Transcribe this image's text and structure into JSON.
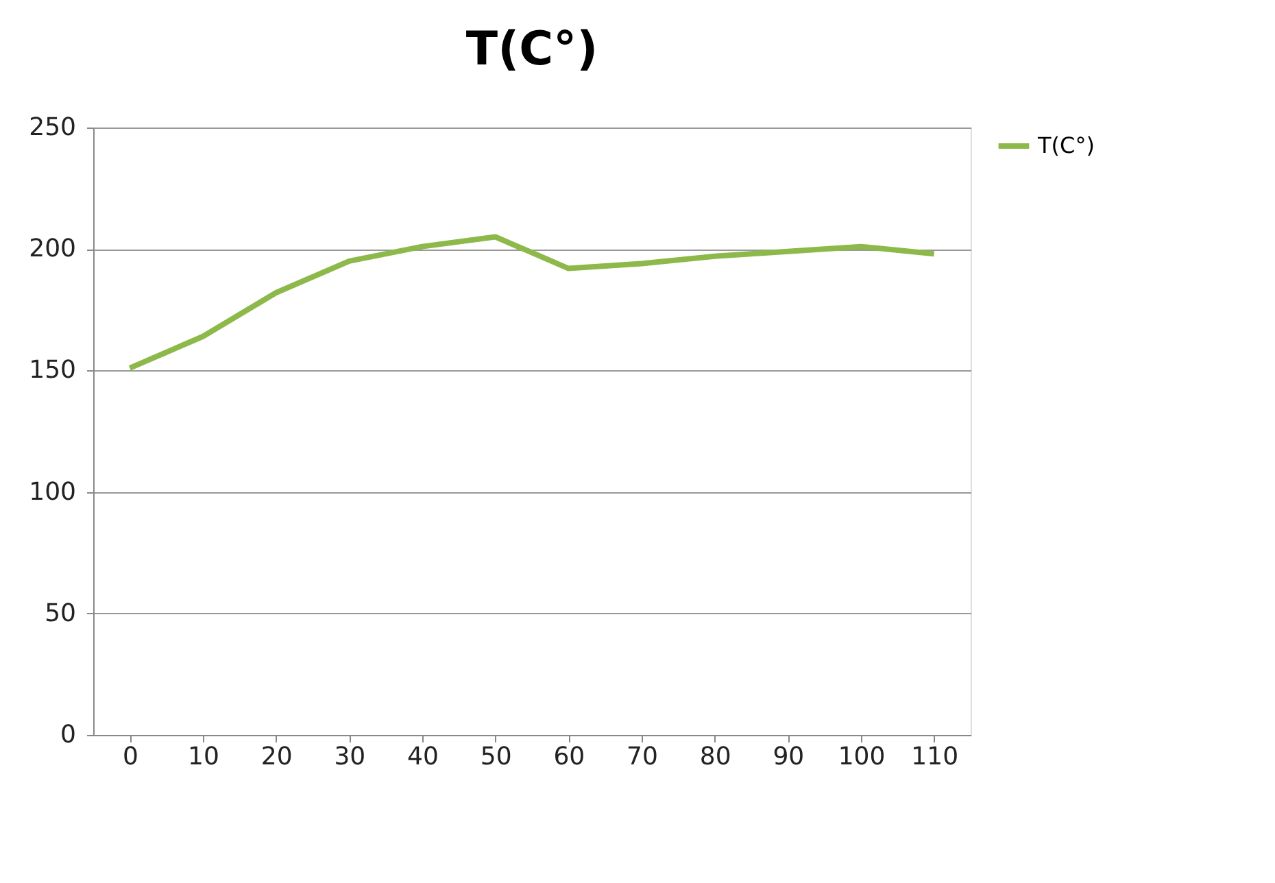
{
  "chart_data": {
    "type": "line",
    "title": "T(C°)",
    "categories": [
      "0",
      "10",
      "20",
      "30",
      "40",
      "50",
      "60",
      "70",
      "80",
      "90",
      "100",
      "110"
    ],
    "series": [
      {
        "name": "T(C°)",
        "color": "#8db94a",
        "values": [
          151,
          164,
          182,
          195,
          201,
          205,
          192,
          194,
          197,
          199,
          201,
          198
        ]
      }
    ],
    "ylim": [
      0,
      250
    ],
    "yticks": [
      0,
      50,
      100,
      150,
      200,
      250
    ],
    "grid": "y",
    "legend": "right",
    "marker": "none",
    "line_style": "solid"
  }
}
